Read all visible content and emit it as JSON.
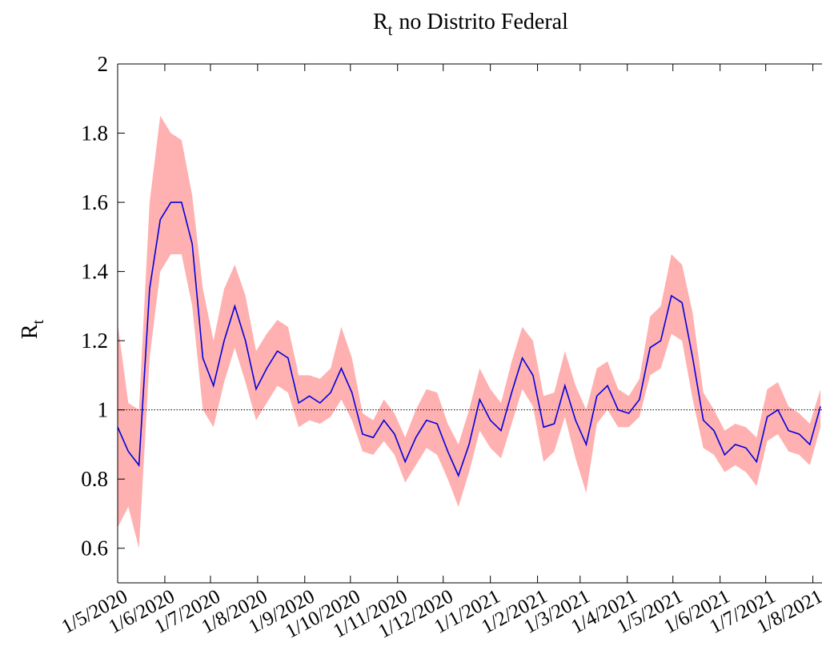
{
  "chart_data": {
    "type": "line",
    "title": {
      "symbol": "R",
      "subscript": "t",
      "text": "no Distrito Federal"
    },
    "y_label": {
      "symbol": "R",
      "subscript": "t"
    },
    "x": [
      "2020-05-01",
      "2020-05-08",
      "2020-05-15",
      "2020-05-22",
      "2020-05-29",
      "2020-06-05",
      "2020-06-12",
      "2020-06-19",
      "2020-06-26",
      "2020-07-03",
      "2020-07-10",
      "2020-07-17",
      "2020-07-24",
      "2020-07-31",
      "2020-08-07",
      "2020-08-14",
      "2020-08-21",
      "2020-08-28",
      "2020-09-04",
      "2020-09-11",
      "2020-09-18",
      "2020-09-25",
      "2020-10-02",
      "2020-10-09",
      "2020-10-16",
      "2020-10-23",
      "2020-10-30",
      "2020-11-06",
      "2020-11-13",
      "2020-11-20",
      "2020-11-27",
      "2020-12-04",
      "2020-12-11",
      "2020-12-18",
      "2020-12-25",
      "2021-01-01",
      "2021-01-08",
      "2021-01-15",
      "2021-01-22",
      "2021-01-29",
      "2021-02-05",
      "2021-02-12",
      "2021-02-19",
      "2021-02-26",
      "2021-03-05",
      "2021-03-12",
      "2021-03-19",
      "2021-03-26",
      "2021-04-02",
      "2021-04-09",
      "2021-04-16",
      "2021-04-23",
      "2021-04-30",
      "2021-05-07",
      "2021-05-14",
      "2021-05-21",
      "2021-05-28",
      "2021-06-04",
      "2021-06-11",
      "2021-06-18",
      "2021-06-25",
      "2021-07-02",
      "2021-07-09",
      "2021-07-16",
      "2021-07-23",
      "2021-07-30",
      "2021-08-06"
    ],
    "line": {
      "color": "#0000dd",
      "values": [
        0.95,
        0.88,
        0.84,
        1.35,
        1.55,
        1.6,
        1.6,
        1.48,
        1.15,
        1.07,
        1.2,
        1.3,
        1.2,
        1.06,
        1.12,
        1.17,
        1.15,
        1.02,
        1.04,
        1.02,
        1.05,
        1.12,
        1.05,
        0.93,
        0.92,
        0.97,
        0.93,
        0.85,
        0.92,
        0.97,
        0.96,
        0.88,
        0.81,
        0.9,
        1.03,
        0.97,
        0.94,
        1.05,
        1.15,
        1.1,
        0.95,
        0.96,
        1.07,
        0.97,
        0.9,
        1.04,
        1.07,
        1.0,
        0.99,
        1.03,
        1.18,
        1.2,
        1.33,
        1.31,
        1.15,
        0.97,
        0.94,
        0.87,
        0.9,
        0.89,
        0.85,
        0.98,
        1.0,
        0.94,
        0.93,
        0.9,
        1.01
      ]
    },
    "band": {
      "color": "#ffb0b0",
      "lower": [
        0.66,
        0.72,
        0.6,
        1.15,
        1.4,
        1.45,
        1.45,
        1.3,
        1.0,
        0.95,
        1.08,
        1.18,
        1.08,
        0.97,
        1.02,
        1.07,
        1.05,
        0.95,
        0.97,
        0.96,
        0.98,
        1.03,
        0.97,
        0.88,
        0.87,
        0.91,
        0.87,
        0.79,
        0.84,
        0.89,
        0.87,
        0.8,
        0.72,
        0.82,
        0.94,
        0.89,
        0.86,
        0.96,
        1.06,
        1.01,
        0.85,
        0.88,
        0.98,
        0.86,
        0.76,
        0.96,
        1.0,
        0.95,
        0.95,
        0.98,
        1.1,
        1.12,
        1.22,
        1.2,
        1.03,
        0.89,
        0.87,
        0.82,
        0.84,
        0.82,
        0.78,
        0.91,
        0.93,
        0.88,
        0.87,
        0.84,
        0.95
      ],
      "upper": [
        1.25,
        1.02,
        1.0,
        1.6,
        1.85,
        1.8,
        1.78,
        1.62,
        1.35,
        1.2,
        1.35,
        1.42,
        1.33,
        1.17,
        1.22,
        1.26,
        1.24,
        1.1,
        1.1,
        1.09,
        1.12,
        1.24,
        1.15,
        0.99,
        0.97,
        1.03,
        0.99,
        0.92,
        1.0,
        1.06,
        1.05,
        0.96,
        0.9,
        1.0,
        1.12,
        1.06,
        1.02,
        1.14,
        1.24,
        1.2,
        1.04,
        1.05,
        1.17,
        1.07,
        1.0,
        1.12,
        1.14,
        1.06,
        1.04,
        1.09,
        1.27,
        1.3,
        1.45,
        1.42,
        1.28,
        1.05,
        1.0,
        0.94,
        0.96,
        0.95,
        0.92,
        1.06,
        1.08,
        1.01,
        0.99,
        0.96,
        1.06
      ]
    },
    "reference_line": 1,
    "xlim": [
      "2020-05-01",
      "2021-08-07"
    ],
    "xticks": [
      {
        "value": "2020-05-01",
        "label": "1/5/2020"
      },
      {
        "value": "2020-06-01",
        "label": "1/6/2020"
      },
      {
        "value": "2020-07-01",
        "label": "1/7/2020"
      },
      {
        "value": "2020-08-01",
        "label": "1/8/2020"
      },
      {
        "value": "2020-09-01",
        "label": "1/9/2020"
      },
      {
        "value": "2020-10-01",
        "label": "1/10/2020"
      },
      {
        "value": "2020-11-01",
        "label": "1/11/2020"
      },
      {
        "value": "2020-12-01",
        "label": "1/12/2020"
      },
      {
        "value": "2021-01-01",
        "label": "1/1/2021"
      },
      {
        "value": "2021-02-01",
        "label": "1/2/2021"
      },
      {
        "value": "2021-03-01",
        "label": "1/3/2021"
      },
      {
        "value": "2021-04-01",
        "label": "1/4/2021"
      },
      {
        "value": "2021-05-01",
        "label": "1/5/2021"
      },
      {
        "value": "2021-06-01",
        "label": "1/6/2021"
      },
      {
        "value": "2021-07-01",
        "label": "1/7/2021"
      },
      {
        "value": "2021-08-01",
        "label": "1/8/2021"
      }
    ],
    "ylim": [
      0.5,
      2
    ],
    "yticks": [
      0.6,
      0.8,
      1,
      1.2,
      1.4,
      1.6,
      1.8,
      2
    ]
  }
}
